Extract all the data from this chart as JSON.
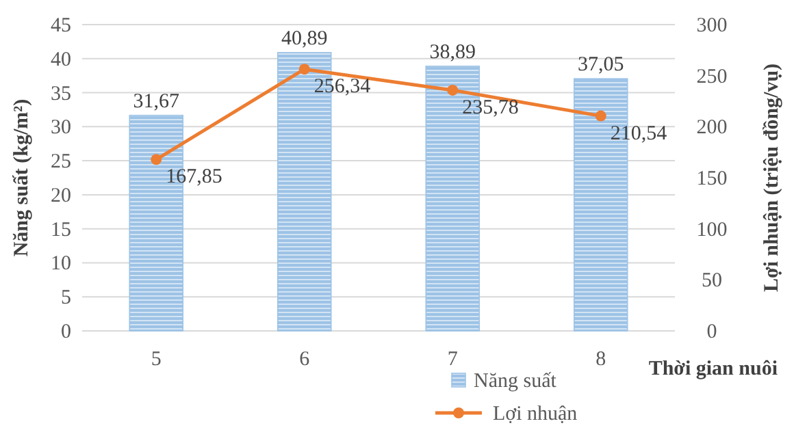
{
  "chart_data": {
    "type": "bar",
    "categories": [
      "5",
      "6",
      "7",
      "8"
    ],
    "xlabel": "Thời gian nuôi",
    "ylabel": "Năng suất (kg/m²)",
    "y2label": "Lợi nhuận (triệu đồng/vụ)",
    "ylim": [
      0,
      45
    ],
    "yticks": [
      0,
      5,
      10,
      15,
      20,
      25,
      30,
      35,
      40,
      45
    ],
    "y2lim": [
      0,
      300
    ],
    "y2ticks": [
      0,
      50,
      100,
      150,
      200,
      250,
      300
    ],
    "grid": "y",
    "legend": "bottom",
    "series": [
      {
        "name": "Năng suất",
        "type": "bar",
        "color": "#9dc3e6",
        "values": [
          31.67,
          40.89,
          38.89,
          37.05
        ],
        "value_labels": [
          "31,67",
          "40,89",
          "38,89",
          "37,05"
        ]
      },
      {
        "name": "Lợi nhuận",
        "type": "line",
        "axis": "y2",
        "color": "#ed7d31",
        "marker": "circle",
        "values": [
          167.85,
          256.34,
          235.78,
          210.54
        ],
        "value_labels": [
          "167,85",
          "256,34",
          "235,78",
          "210,54"
        ]
      }
    ]
  }
}
